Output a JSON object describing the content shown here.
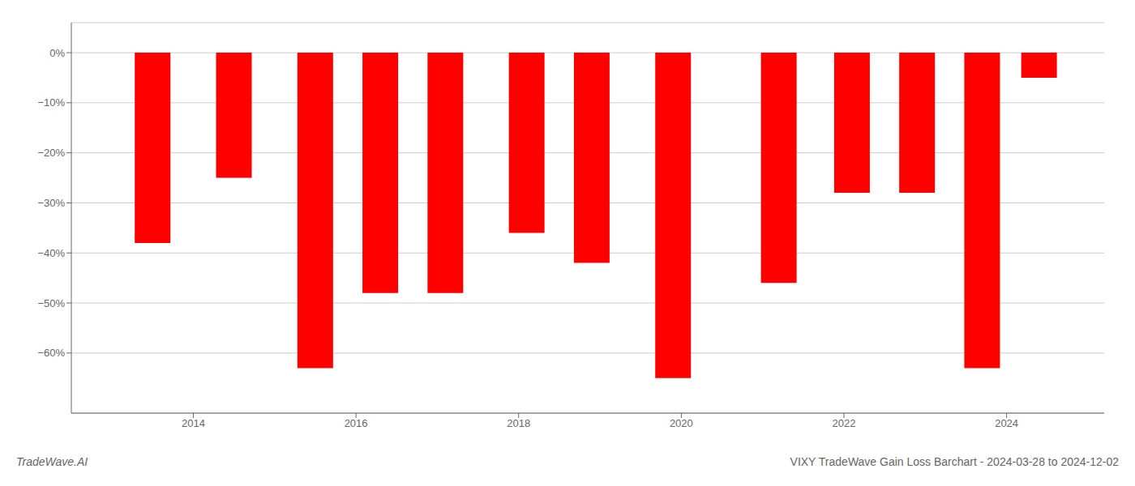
{
  "chart_data": {
    "type": "bar",
    "title": "VIXY TradeWave Gain Loss Barchart - 2024-03-28 to 2024-12-02",
    "annotations": [
      "TradeWave.AI"
    ],
    "x": [
      2013.5,
      2014.5,
      2015.5,
      2016.3,
      2017.1,
      2018.1,
      2018.9,
      2019.9,
      2021.2,
      2022.1,
      2022.9,
      2023.7,
      2024.4
    ],
    "values": [
      -0.38,
      -0.25,
      -0.63,
      -0.48,
      -0.48,
      -0.36,
      -0.42,
      -0.65,
      -0.46,
      -0.28,
      -0.28,
      -0.63,
      -0.05
    ],
    "color": "#FF0000",
    "xlim": [
      2012.5,
      2025.2
    ],
    "xticks": [
      2014,
      2016,
      2018,
      2020,
      2022,
      2024
    ],
    "ylim": [
      -0.72,
      0.06
    ],
    "yticks": [
      {
        "value": 0,
        "label": "0%"
      },
      {
        "value": -0.1,
        "label": "−10%"
      },
      {
        "value": -0.2,
        "label": "−20%"
      },
      {
        "value": -0.3,
        "label": "−30%"
      },
      {
        "value": -0.4,
        "label": "−40%"
      },
      {
        "value": -0.5,
        "label": "−50%"
      },
      {
        "value": -0.6,
        "label": "−60%"
      }
    ],
    "grid": true
  }
}
